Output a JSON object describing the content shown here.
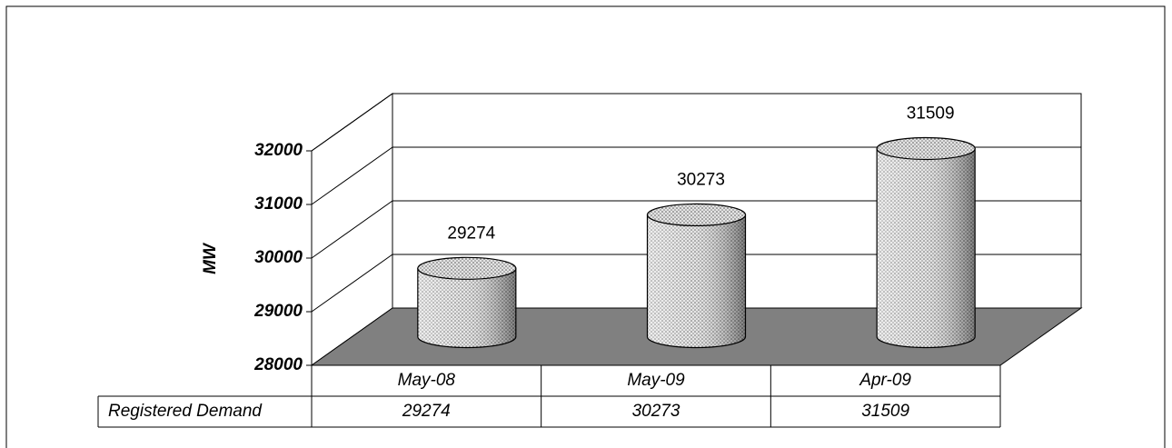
{
  "chart_data": {
    "type": "bar",
    "ylabel": "MW",
    "categories": [
      "May-08",
      "May-09",
      "Apr-09"
    ],
    "series": [
      {
        "name": "Registered Demand",
        "color": "#d8d8d8",
        "values": [
          29274,
          30273,
          31509
        ]
      }
    ],
    "ylim": [
      28000,
      32000
    ],
    "yticks": [
      28000,
      29000,
      30000,
      31000,
      32000
    ],
    "grid": true
  }
}
